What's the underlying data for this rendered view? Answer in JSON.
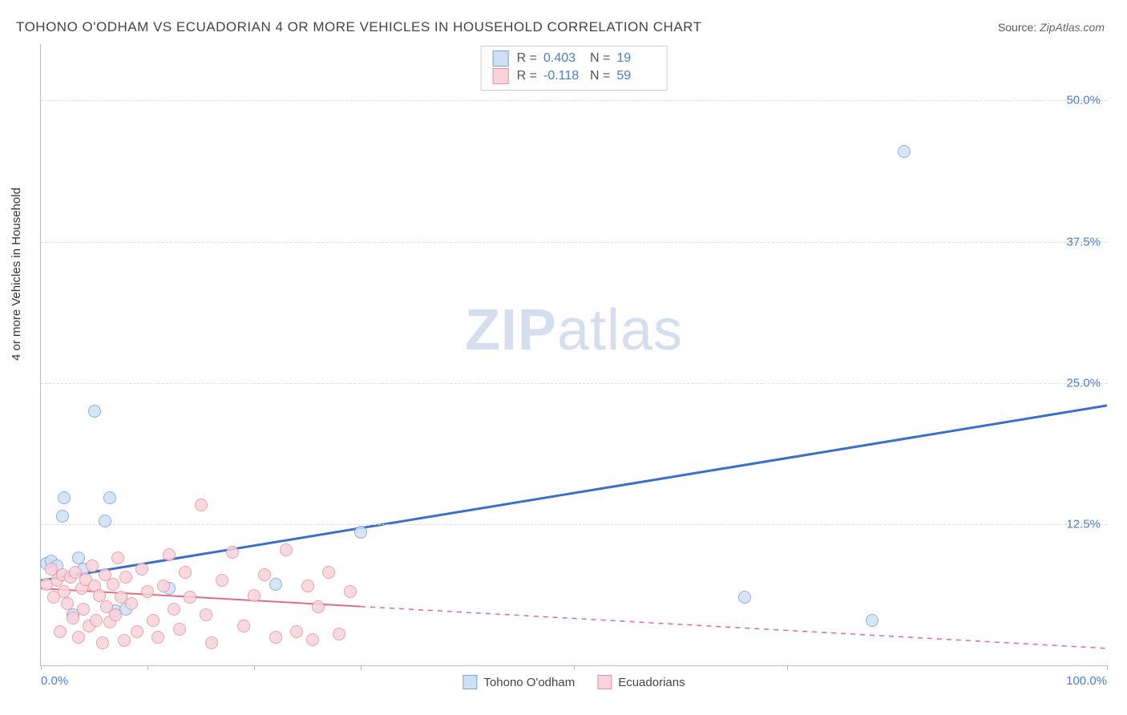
{
  "title": "TOHONO O'ODHAM VS ECUADORIAN 4 OR MORE VEHICLES IN HOUSEHOLD CORRELATION CHART",
  "source_label": "Source:",
  "source_value": "ZipAtlas.com",
  "ylabel": "4 or more Vehicles in Household",
  "watermark_a": "ZIP",
  "watermark_b": "atlas",
  "chart": {
    "type": "scatter",
    "xlim": [
      0,
      100
    ],
    "ylim": [
      0,
      55
    ],
    "yticks": [
      12.5,
      25.0,
      37.5,
      50.0
    ],
    "ytick_labels": [
      "12.5%",
      "25.0%",
      "37.5%",
      "50.0%"
    ],
    "xticks": [
      0,
      10,
      20,
      30,
      50,
      70,
      100
    ],
    "xtick_labels_shown": {
      "0": "0.0%",
      "100": "100.0%"
    },
    "background_color": "#ffffff",
    "grid_color": "#dddddd",
    "axis_color": "#bbbbbb",
    "point_radius": 8,
    "series": [
      {
        "name": "Tohono O'odham",
        "fill": "#cfe0f5",
        "stroke": "#7aa3d8",
        "trend": {
          "x1": 0,
          "y1": 7.5,
          "x2": 100,
          "y2": 23.0,
          "solid_until_x": 100,
          "color": "#3b6fc9",
          "width": 3
        },
        "R_label": "R =",
        "R": "0.403",
        "N_label": "N =",
        "N": "19",
        "points": [
          [
            0.5,
            9.0
          ],
          [
            1.0,
            9.2
          ],
          [
            2.0,
            13.2
          ],
          [
            2.2,
            14.8
          ],
          [
            3.5,
            9.5
          ],
          [
            5.0,
            22.5
          ],
          [
            6.0,
            12.8
          ],
          [
            6.5,
            14.8
          ],
          [
            7.0,
            4.8
          ],
          [
            8.0,
            5.0
          ],
          [
            3.0,
            4.5
          ],
          [
            12.0,
            6.8
          ],
          [
            22.0,
            7.2
          ],
          [
            30.0,
            11.8
          ],
          [
            66.0,
            6.0
          ],
          [
            78.0,
            4.0
          ],
          [
            81.0,
            45.5
          ],
          [
            1.5,
            8.8
          ],
          [
            4.0,
            8.5
          ]
        ]
      },
      {
        "name": "Ecuadorians",
        "fill": "#f8d3db",
        "stroke": "#e890a4",
        "trend": {
          "x1": 0,
          "y1": 6.8,
          "x2": 100,
          "y2": 1.5,
          "solid_until_x": 30,
          "color": "#e36b88",
          "width": 2
        },
        "R_label": "R =",
        "R": "-0.118",
        "N_label": "N =",
        "N": "59",
        "points": [
          [
            0.5,
            7.2
          ],
          [
            1.0,
            8.5
          ],
          [
            1.2,
            6.0
          ],
          [
            1.5,
            7.5
          ],
          [
            1.8,
            3.0
          ],
          [
            2.0,
            8.0
          ],
          [
            2.2,
            6.5
          ],
          [
            2.5,
            5.5
          ],
          [
            2.8,
            7.8
          ],
          [
            3.0,
            4.2
          ],
          [
            3.2,
            8.2
          ],
          [
            3.5,
            2.5
          ],
          [
            3.8,
            6.8
          ],
          [
            4.0,
            5.0
          ],
          [
            4.2,
            7.6
          ],
          [
            4.5,
            3.5
          ],
          [
            4.8,
            8.8
          ],
          [
            5.0,
            7.0
          ],
          [
            5.2,
            4.0
          ],
          [
            5.5,
            6.2
          ],
          [
            5.8,
            2.0
          ],
          [
            6.0,
            8.0
          ],
          [
            6.2,
            5.2
          ],
          [
            6.5,
            3.8
          ],
          [
            6.8,
            7.2
          ],
          [
            7.0,
            4.5
          ],
          [
            7.2,
            9.5
          ],
          [
            7.5,
            6.0
          ],
          [
            7.8,
            2.2
          ],
          [
            8.0,
            7.8
          ],
          [
            8.5,
            5.5
          ],
          [
            9.0,
            3.0
          ],
          [
            9.5,
            8.5
          ],
          [
            10.0,
            6.5
          ],
          [
            10.5,
            4.0
          ],
          [
            11.0,
            2.5
          ],
          [
            11.5,
            7.0
          ],
          [
            12.0,
            9.8
          ],
          [
            12.5,
            5.0
          ],
          [
            13.0,
            3.2
          ],
          [
            13.5,
            8.2
          ],
          [
            14.0,
            6.0
          ],
          [
            15.0,
            14.2
          ],
          [
            15.5,
            4.5
          ],
          [
            16.0,
            2.0
          ],
          [
            17.0,
            7.5
          ],
          [
            18.0,
            10.0
          ],
          [
            19.0,
            3.5
          ],
          [
            20.0,
            6.2
          ],
          [
            21.0,
            8.0
          ],
          [
            22.0,
            2.5
          ],
          [
            23.0,
            10.2
          ],
          [
            24.0,
            3.0
          ],
          [
            25.0,
            7.0
          ],
          [
            25.5,
            2.3
          ],
          [
            26.0,
            5.2
          ],
          [
            27.0,
            8.2
          ],
          [
            28.0,
            2.8
          ],
          [
            29.0,
            6.5
          ]
        ]
      }
    ]
  },
  "legend_bottom": [
    "Tohono O'odham",
    "Ecuadorians"
  ]
}
